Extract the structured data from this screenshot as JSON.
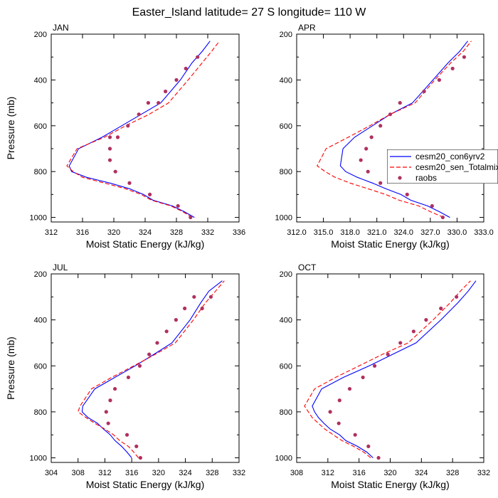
{
  "figure_title": "Easter_Island  latitude= 27 S longitude= 110 W",
  "colors": {
    "model1": "#0000ff",
    "model2": "#ff0000",
    "obs": "#b03060"
  },
  "legend": {
    "items": [
      {
        "label": "cesm20_con6yrv2",
        "style": "solid"
      },
      {
        "label": "cesm20_sen_Totalmix",
        "style": "dashed"
      },
      {
        "label": "raobs",
        "style": "marker"
      }
    ]
  },
  "chart_data": [
    {
      "type": "line",
      "title": "JAN",
      "xlabel": "Moist Static Energy (kJ/kg)",
      "ylabel": "Pressure (mb)",
      "xlim": [
        312,
        336
      ],
      "ylim": [
        1020,
        200
      ],
      "xticks": [
        "312",
        "316",
        "320",
        "324",
        "328",
        "332",
        "336"
      ],
      "xtick_values": [
        312,
        316,
        320,
        324,
        328,
        332,
        336
      ],
      "yticks": [
        "200",
        "400",
        "600",
        "800",
        "1000"
      ],
      "ytick_values": [
        200,
        400,
        600,
        800,
        1000
      ],
      "series": [
        {
          "name": "cesm20_con6yrv2",
          "style": "solid",
          "x": [
            330.3,
            329.0,
            327.5,
            325.0,
            323.8,
            322.0,
            319.5,
            316.5,
            314.6,
            314.3,
            315.5,
            318.5,
            321.0,
            323.5,
            326.0,
            328.5,
            330.0,
            331.3,
            332.3
          ],
          "y": [
            1000,
            975,
            950,
            925,
            900,
            875,
            850,
            825,
            800,
            775,
            700,
            650,
            600,
            550,
            500,
            400,
            325,
            275,
            230
          ]
        },
        {
          "name": "cesm20_sen_Totalmix",
          "style": "dashed",
          "x": [
            330.0,
            328.8,
            327.3,
            324.8,
            323.5,
            321.5,
            318.8,
            316.0,
            314.8,
            314.0,
            315.3,
            318.8,
            321.5,
            324.5,
            327.0,
            329.5,
            331.3,
            332.5,
            333.5
          ],
          "y": [
            1000,
            975,
            950,
            925,
            900,
            875,
            850,
            825,
            800,
            775,
            700,
            650,
            600,
            550,
            500,
            400,
            325,
            275,
            230
          ]
        },
        {
          "name": "raobs",
          "style": "marker",
          "x": [
            329.8,
            328.2,
            324.6,
            322.0,
            320.2,
            319.5,
            319.5,
            319.5,
            320.5,
            321.8,
            323.2,
            324.4,
            325.7,
            326.6,
            328.0,
            329.2,
            330.7
          ],
          "y": [
            1000,
            950,
            900,
            850,
            800,
            750,
            700,
            650,
            650,
            600,
            550,
            500,
            500,
            450,
            400,
            350,
            300
          ]
        }
      ]
    },
    {
      "type": "line",
      "title": "APR",
      "xlabel": "Moist Static Energy (kJ/kg)",
      "ylabel": "",
      "xlim": [
        312,
        333
      ],
      "ylim": [
        1020,
        200
      ],
      "xticks": [
        "312.0",
        "315.0",
        "318.0",
        "321.0",
        "324.0",
        "327.0",
        "330.0",
        "333.0"
      ],
      "xtick_values": [
        312,
        315,
        318,
        321,
        324,
        327,
        330,
        333
      ],
      "yticks": [
        "200",
        "400",
        "600",
        "800",
        "1000"
      ],
      "ytick_values": [
        200,
        400,
        600,
        800,
        1000
      ],
      "series": [
        {
          "name": "cesm20_con6yrv2",
          "style": "solid",
          "x": [
            329.2,
            328.0,
            326.7,
            324.8,
            323.7,
            322.0,
            320.5,
            318.8,
            317.5,
            316.9,
            317.2,
            318.5,
            320.5,
            322.5,
            325.0,
            327.3,
            329.0,
            330.3,
            331.2
          ],
          "y": [
            1000,
            975,
            950,
            925,
            900,
            875,
            850,
            825,
            800,
            775,
            700,
            650,
            600,
            550,
            500,
            400,
            325,
            275,
            230
          ]
        },
        {
          "name": "cesm20_sen_Totalmix",
          "style": "dashed",
          "x": [
            328.5,
            327.0,
            325.7,
            323.5,
            322.0,
            320.0,
            318.0,
            316.3,
            315.2,
            314.3,
            315.3,
            317.8,
            320.2,
            322.5,
            325.3,
            327.5,
            329.3,
            330.7,
            331.6
          ],
          "y": [
            1000,
            975,
            950,
            925,
            900,
            875,
            850,
            825,
            800,
            775,
            700,
            650,
            600,
            550,
            500,
            400,
            325,
            275,
            230
          ]
        },
        {
          "name": "raobs",
          "style": "marker",
          "x": [
            328.4,
            327.2,
            324.4,
            321.4,
            320.0,
            319.2,
            319.8,
            320.4,
            321.4,
            322.5,
            323.6,
            326.3,
            328.0,
            329.5,
            330.8
          ],
          "y": [
            1000,
            950,
            900,
            850,
            800,
            750,
            700,
            650,
            600,
            550,
            500,
            450,
            400,
            350,
            300
          ]
        }
      ]
    },
    {
      "type": "line",
      "title": "JUL",
      "xlabel": "Moist Static Energy (kJ/kg)",
      "ylabel": "Pressure (mb)",
      "xlim": [
        304,
        332
      ],
      "ylim": [
        1020,
        200
      ],
      "xticks": [
        "304",
        "308",
        "312",
        "316",
        "320",
        "324",
        "328",
        "332"
      ],
      "xtick_values": [
        304,
        308,
        312,
        316,
        320,
        324,
        328,
        332
      ],
      "yticks": [
        "200",
        "400",
        "600",
        "800",
        "1000"
      ],
      "ytick_values": [
        200,
        400,
        600,
        800,
        1000
      ],
      "series": [
        {
          "name": "cesm20_con6yrv2",
          "style": "solid",
          "x": [
            316.0,
            315.3,
            314.5,
            313.5,
            312.8,
            311.8,
            310.9,
            309.5,
            308.6,
            308.7,
            310.5,
            313.5,
            316.5,
            319.3,
            322.0,
            324.7,
            326.3,
            327.5,
            329.5
          ],
          "y": [
            1000,
            975,
            950,
            925,
            900,
            875,
            850,
            825,
            800,
            775,
            700,
            650,
            600,
            550,
            500,
            400,
            325,
            275,
            230
          ]
        },
        {
          "name": "cesm20_sen_Totalmix",
          "style": "dashed",
          "x": [
            317.0,
            316.3,
            315.5,
            314.2,
            313.3,
            312.0,
            310.5,
            309.2,
            308.0,
            308.3,
            310.0,
            313.0,
            316.3,
            319.5,
            322.5,
            325.2,
            327.0,
            328.5,
            329.8
          ],
          "y": [
            1000,
            975,
            950,
            925,
            900,
            875,
            850,
            825,
            800,
            775,
            700,
            650,
            600,
            550,
            500,
            400,
            325,
            275,
            230
          ]
        },
        {
          "name": "raobs",
          "style": "marker",
          "x": [
            317.3,
            316.7,
            315.3,
            312.5,
            312.2,
            312.8,
            313.5,
            315.5,
            317.2,
            318.6,
            319.8,
            321.2,
            322.6,
            323.9,
            325.3,
            326.5,
            327.8
          ],
          "y": [
            1000,
            950,
            900,
            850,
            800,
            750,
            700,
            650,
            600,
            550,
            500,
            450,
            400,
            350,
            300,
            350,
            300
          ]
        }
      ]
    },
    {
      "type": "line",
      "title": "OCT",
      "xlabel": "Moist Static Energy (kJ/kg)",
      "ylabel": "",
      "xlim": [
        308,
        332
      ],
      "ylim": [
        1020,
        200
      ],
      "xticks": [
        "308",
        "312",
        "316",
        "320",
        "324",
        "328",
        "332"
      ],
      "xtick_values": [
        308,
        312,
        316,
        320,
        324,
        328,
        332
      ],
      "yticks": [
        "200",
        "400",
        "600",
        "800",
        "1000"
      ],
      "ytick_values": [
        200,
        400,
        600,
        800,
        1000
      ],
      "series": [
        {
          "name": "cesm20_con6yrv2",
          "style": "solid",
          "x": [
            317.8,
            317.0,
            315.8,
            314.3,
            313.5,
            312.3,
            311.5,
            310.8,
            310.3,
            310.0,
            311.2,
            314.0,
            317.3,
            320.3,
            323.3,
            326.5,
            328.7,
            330.0,
            331.0
          ],
          "y": [
            1000,
            975,
            950,
            925,
            900,
            875,
            850,
            825,
            800,
            775,
            700,
            650,
            600,
            550,
            500,
            400,
            325,
            275,
            230
          ]
        },
        {
          "name": "cesm20_sen_Totalmix",
          "style": "dashed",
          "x": [
            317.5,
            316.6,
            315.3,
            313.8,
            312.7,
            311.6,
            310.8,
            310.0,
            309.5,
            309.0,
            310.3,
            313.0,
            316.0,
            319.0,
            322.3,
            325.5,
            327.7,
            329.0,
            330.3
          ],
          "y": [
            1000,
            975,
            950,
            925,
            900,
            875,
            850,
            825,
            800,
            775,
            700,
            650,
            600,
            550,
            500,
            400,
            325,
            275,
            230
          ]
        },
        {
          "name": "raobs",
          "style": "marker",
          "x": [
            318.5,
            317.2,
            315.5,
            313.4,
            312.3,
            313.5,
            314.8,
            316.5,
            318.0,
            319.7,
            321.3,
            323.0,
            324.6,
            326.5,
            328.5
          ],
          "y": [
            1000,
            950,
            900,
            850,
            800,
            750,
            700,
            650,
            600,
            550,
            500,
            450,
            400,
            350,
            300
          ]
        }
      ]
    }
  ]
}
